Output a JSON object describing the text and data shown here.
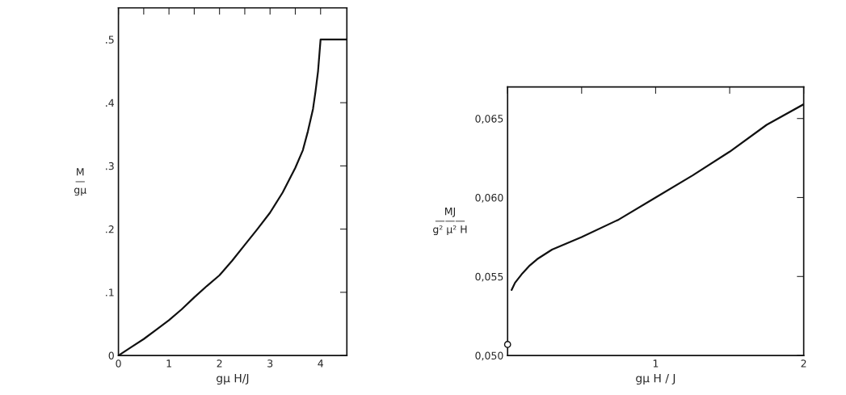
{
  "chart_data": [
    {
      "type": "line",
      "xlabel": "gμ H/J",
      "ylabel": "M\n—\ngμ",
      "xlim": [
        0,
        4.52
      ],
      "ylim": [
        0,
        0.55
      ],
      "xticks": [
        {
          "value": 0,
          "label": "0"
        },
        {
          "value": 0.5,
          "label": null
        },
        {
          "value": 1,
          "label": "1"
        },
        {
          "value": 1.5,
          "label": null
        },
        {
          "value": 2,
          "label": "2"
        },
        {
          "value": 2.5,
          "label": null
        },
        {
          "value": 3,
          "label": "3"
        },
        {
          "value": 3.5,
          "label": null
        },
        {
          "value": 4,
          "label": "4"
        }
      ],
      "yticks": [
        {
          "value": 0,
          "label": "0"
        },
        {
          "value": 0.1,
          "label": ".1"
        },
        {
          "value": 0.2,
          "label": ".2"
        },
        {
          "value": 0.3,
          "label": ".3"
        },
        {
          "value": 0.4,
          "label": ".4"
        },
        {
          "value": 0.5,
          "label": ".5"
        }
      ],
      "grid": false,
      "marker": "none",
      "line_style": "solid",
      "series": [
        {
          "color": "#111111",
          "x": [
            0,
            0.25,
            0.5,
            0.75,
            1,
            1.25,
            1.5,
            1.75,
            2,
            2.25,
            2.5,
            2.75,
            3,
            3.25,
            3.5,
            3.65,
            3.75,
            3.85,
            3.9,
            3.95,
            4,
            4.52
          ],
          "values": [
            0,
            0.013,
            0.026,
            0.041,
            0.056,
            0.073,
            0.092,
            0.11,
            0.127,
            0.15,
            0.175,
            0.2,
            0.226,
            0.258,
            0.297,
            0.325,
            0.355,
            0.39,
            0.418,
            0.45,
            0.5,
            0.5
          ]
        }
      ]
    },
    {
      "type": "line",
      "xlabel": "gμ H / J",
      "ylabel": "MJ\n———\ng² μ² H",
      "xlim": [
        0,
        2
      ],
      "ylim": [
        0.05,
        0.067
      ],
      "xticks": [
        {
          "value": 0,
          "label": null
        },
        {
          "value": 0.5,
          "label": null
        },
        {
          "value": 1,
          "label": "1"
        },
        {
          "value": 1.5,
          "label": null
        },
        {
          "value": 2,
          "label": "2"
        }
      ],
      "yticks": [
        {
          "value": 0.05,
          "label": "0,050"
        },
        {
          "value": 0.055,
          "label": "0,055"
        },
        {
          "value": 0.06,
          "label": "0,060"
        },
        {
          "value": 0.065,
          "label": "0,065"
        }
      ],
      "grid": false,
      "line_style": "solid",
      "series": [
        {
          "color": "#111111",
          "marker": "none",
          "x": [
            0.027,
            0.05,
            0.1,
            0.15,
            0.2,
            0.3,
            0.4,
            0.5,
            0.75,
            1,
            1.25,
            1.5,
            1.75,
            2
          ],
          "values": [
            0.05415,
            0.0546,
            0.0552,
            0.0557,
            0.0561,
            0.0567,
            0.0571,
            0.0575,
            0.0586,
            0.06,
            0.0614,
            0.0629,
            0.0646,
            0.0659
          ]
        },
        {
          "type": "scatter",
          "color": "#111111",
          "marker": "circle",
          "x": [
            0
          ],
          "values": [
            0.0507
          ]
        }
      ]
    }
  ]
}
